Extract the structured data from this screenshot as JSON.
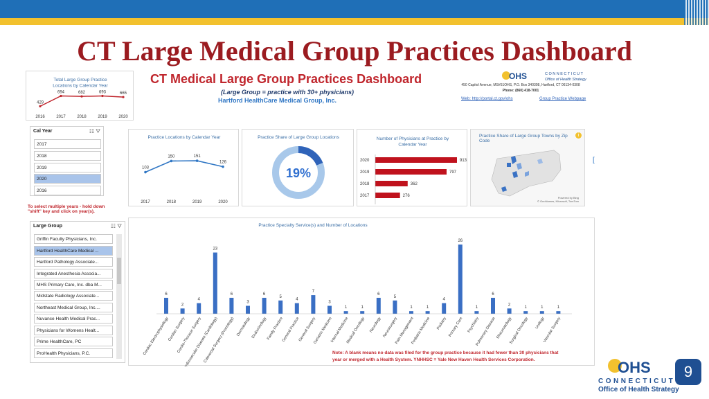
{
  "slide_title": "CT Large Medical Group Practices Dashboard",
  "page_number": "9",
  "dashboard": {
    "title": "CT Medical Large Group Practices Dashboard",
    "subtitle": "(Large Group = practice with 30+ physicians)",
    "group_name": "Hartford HealthCare Medical Group, Inc.",
    "ohs_address": "450 Capitol Avenue, MS#51OHS,  P.O. Box 340308, Hartford, CT 06134-0308",
    "ohs_phone": "Phone: (860) 418-7001",
    "web_link": "Web: http://portal.ct.gov/ohs",
    "webpage_link": "Group Practice Webpage",
    "ohs_logo_small": {
      "ohs": "OHS",
      "line1": "CONNECTICUT",
      "line2": "Office of Health Strategy"
    }
  },
  "cal_year_slicer": {
    "header": "Cal Year",
    "items": [
      "2017",
      "2018",
      "2019",
      "2020",
      "2016"
    ],
    "selected": "2020"
  },
  "multi_select_note": "To select multiple years - hold down \"shift\" key and click on year(s).",
  "large_group_slicer": {
    "header": "Large Group",
    "items": [
      "Griffin Faculty Physicians, Inc.",
      "Hartford HealthCare Medical ...",
      "Hartford Pathology Associate...",
      "Integrated Anesthesia Associa...",
      "MHS Primary Care, Inc. dba M...",
      "Midstate Radiology Associate...",
      "Northeast Medical Group, Inc....",
      "Nuvance Health Medical Prac...",
      "Physicians for Womens Healt...",
      "Prime HealthCare, PC",
      "ProHealth Physicians, P.C."
    ],
    "selected": "Hartford HealthCare Medical ..."
  },
  "map_card": {
    "title": "Practice Share of Large Group Towns by Zip Code",
    "info_icon": "i",
    "legal1": "Powered by Bing",
    "legal2": "© GeoNames, Microsoft, TomTom"
  },
  "footnote": "Note: A blank means no data was filed for the group practice because it had fewer than 30 physicians that year or merged with a Health System.  YNHHSC = Yale New Haven Health Services Corporation.",
  "footer_logo": {
    "ohs": "OHS",
    "line1": "CONNECTICUT",
    "line2": "Office of Health Strategy"
  },
  "colors": {
    "brand_red": "#9b1b20",
    "accent_blue": "#2f76c4",
    "bar_red": "#c0121d",
    "bar_blue": "#3a6fc4"
  },
  "chart_data": [
    {
      "id": "total-locations",
      "type": "line",
      "title": "Total Large Group Practice Locations by Calendar Year",
      "categories": [
        "2016",
        "2017",
        "2018",
        "2019",
        "2020"
      ],
      "values": [
        429,
        694,
        682,
        693,
        665
      ],
      "color": "#c0262d"
    },
    {
      "id": "locations-by-year",
      "type": "line",
      "title": "Practice Locations by Calendar Year",
      "categories": [
        "2017",
        "2018",
        "2019",
        "2020"
      ],
      "values": [
        103,
        150,
        151,
        126
      ],
      "color": "#2f76c4"
    },
    {
      "id": "practice-share",
      "type": "pie",
      "title": "Practice Share of Large Group Locations",
      "value_label": "19%",
      "value": 0.19
    },
    {
      "id": "physicians-by-year",
      "type": "bar",
      "title": "Number of Physicians at Practice by Calendar Year",
      "categories": [
        "2020",
        "2019",
        "2018",
        "2017"
      ],
      "values": [
        913,
        797,
        362,
        276
      ],
      "color": "#c0121d"
    },
    {
      "id": "specialty-services",
      "type": "bar",
      "title": "Practice Specialty Service(s) and Number of Locations",
      "categories": [
        "Cardiac Electrophysiology",
        "Cardiac Surgery",
        "Cardio-Thoracic Surgery",
        "Cardiovascular Disease (Cardiology)",
        "Colorectal Surgery (Proctology)",
        "Dermatology",
        "Endocrinology",
        "Family Practice",
        "General Practice",
        "General Surgery",
        "Geriatric Medicine",
        "Internal Medicine",
        "Medical Oncology",
        "Neurology",
        "Neurosurgery",
        "Pain Management",
        "Pediatric Medicine",
        "Podiatry",
        "Primary Care",
        "Psychiatry",
        "Pulmonary Disease",
        "Rheumatology",
        "Surgical Oncology",
        "Urology",
        "Vascular Surgery"
      ],
      "values": [
        6,
        2,
        4,
        23,
        6,
        3,
        6,
        5,
        4,
        7,
        3,
        1,
        1,
        6,
        5,
        1,
        1,
        4,
        26,
        1,
        6,
        2,
        1,
        1,
        1
      ],
      "color": "#3a6fc4"
    }
  ]
}
